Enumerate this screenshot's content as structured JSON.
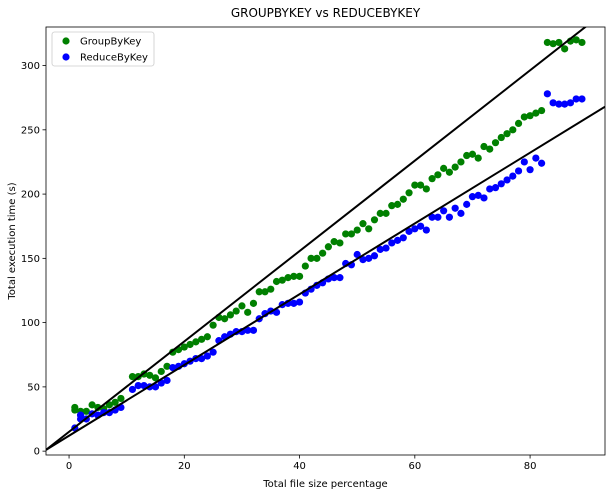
{
  "chart_data": {
    "type": "scatter",
    "title": "GROUPBYKEY vs REDUCEBYKEY",
    "xlabel": "Total file size percentage",
    "ylabel": "Total execution time (s)",
    "xlim": [
      -4,
      93
    ],
    "ylim": [
      -3,
      330
    ],
    "x_ticks": [
      0,
      20,
      40,
      60,
      80
    ],
    "y_ticks": [
      0,
      50,
      100,
      150,
      200,
      250,
      300
    ],
    "grid": false,
    "legend_position": "top-left",
    "series": [
      {
        "name": "GroupByKey",
        "color": "#008000",
        "points": [
          [
            1,
            34
          ],
          [
            1,
            32
          ],
          [
            2,
            31
          ],
          [
            2,
            28
          ],
          [
            3,
            31
          ],
          [
            4,
            36
          ],
          [
            5,
            34
          ],
          [
            6,
            33
          ],
          [
            7,
            36
          ],
          [
            8,
            38
          ],
          [
            9,
            41
          ],
          [
            11,
            58
          ],
          [
            12,
            58
          ],
          [
            13,
            60
          ],
          [
            14,
            59
          ],
          [
            15,
            57
          ],
          [
            16,
            62
          ],
          [
            17,
            66
          ],
          [
            18,
            77
          ],
          [
            19,
            79
          ],
          [
            20,
            81
          ],
          [
            21,
            83
          ],
          [
            22,
            85
          ],
          [
            23,
            87
          ],
          [
            24,
            89
          ],
          [
            25,
            98
          ],
          [
            26,
            104
          ],
          [
            27,
            103
          ],
          [
            28,
            106
          ],
          [
            29,
            109
          ],
          [
            30,
            113
          ],
          [
            31,
            108
          ],
          [
            32,
            115
          ],
          [
            33,
            124
          ],
          [
            34,
            124
          ],
          [
            35,
            126
          ],
          [
            36,
            132
          ],
          [
            37,
            133
          ],
          [
            38,
            135
          ],
          [
            39,
            136
          ],
          [
            40,
            136
          ],
          [
            41,
            144
          ],
          [
            42,
            150
          ],
          [
            43,
            150
          ],
          [
            44,
            154
          ],
          [
            45,
            159
          ],
          [
            46,
            163
          ],
          [
            47,
            162
          ],
          [
            48,
            169
          ],
          [
            49,
            169
          ],
          [
            50,
            172
          ],
          [
            51,
            177
          ],
          [
            52,
            173
          ],
          [
            53,
            180
          ],
          [
            54,
            185
          ],
          [
            55,
            185
          ],
          [
            56,
            191
          ],
          [
            57,
            192
          ],
          [
            58,
            196
          ],
          [
            59,
            201
          ],
          [
            60,
            207
          ],
          [
            61,
            207
          ],
          [
            62,
            204
          ],
          [
            63,
            212
          ],
          [
            64,
            215
          ],
          [
            65,
            220
          ],
          [
            66,
            217
          ],
          [
            67,
            221
          ],
          [
            68,
            225
          ],
          [
            69,
            230
          ],
          [
            70,
            231
          ],
          [
            71,
            228
          ],
          [
            72,
            237
          ],
          [
            73,
            235
          ],
          [
            74,
            240
          ],
          [
            75,
            244
          ],
          [
            76,
            247
          ],
          [
            77,
            250
          ],
          [
            78,
            255
          ],
          [
            79,
            260
          ],
          [
            80,
            261
          ],
          [
            81,
            263
          ],
          [
            82,
            265
          ],
          [
            83,
            318
          ],
          [
            84,
            317
          ],
          [
            85,
            318
          ],
          [
            86,
            313
          ],
          [
            87,
            319
          ],
          [
            88,
            320
          ],
          [
            89,
            318
          ]
        ]
      },
      {
        "name": "ReduceByKey",
        "color": "#0000ff",
        "points": [
          [
            1,
            18
          ],
          [
            2,
            28
          ],
          [
            2,
            25
          ],
          [
            3,
            25
          ],
          [
            4,
            29
          ],
          [
            5,
            28
          ],
          [
            6,
            30
          ],
          [
            7,
            30
          ],
          [
            8,
            32
          ],
          [
            9,
            34
          ],
          [
            11,
            48
          ],
          [
            12,
            51
          ],
          [
            13,
            51
          ],
          [
            14,
            50
          ],
          [
            15,
            50
          ],
          [
            16,
            53
          ],
          [
            17,
            55
          ],
          [
            18,
            65
          ],
          [
            19,
            66
          ],
          [
            20,
            68
          ],
          [
            21,
            70
          ],
          [
            22,
            72
          ],
          [
            23,
            72
          ],
          [
            24,
            74
          ],
          [
            25,
            77
          ],
          [
            26,
            86
          ],
          [
            27,
            89
          ],
          [
            28,
            91
          ],
          [
            29,
            93
          ],
          [
            30,
            93
          ],
          [
            31,
            94
          ],
          [
            32,
            94
          ],
          [
            33,
            103
          ],
          [
            34,
            107
          ],
          [
            35,
            109
          ],
          [
            36,
            108
          ],
          [
            37,
            114
          ],
          [
            38,
            115
          ],
          [
            39,
            115
          ],
          [
            40,
            116
          ],
          [
            41,
            123
          ],
          [
            42,
            126
          ],
          [
            43,
            129
          ],
          [
            44,
            131
          ],
          [
            45,
            134
          ],
          [
            46,
            135
          ],
          [
            47,
            135
          ],
          [
            48,
            146
          ],
          [
            49,
            145
          ],
          [
            50,
            153
          ],
          [
            51,
            149
          ],
          [
            52,
            150
          ],
          [
            53,
            152
          ],
          [
            54,
            157
          ],
          [
            55,
            158
          ],
          [
            56,
            162
          ],
          [
            57,
            164
          ],
          [
            58,
            166
          ],
          [
            59,
            171
          ],
          [
            60,
            173
          ],
          [
            61,
            175
          ],
          [
            62,
            172
          ],
          [
            63,
            182
          ],
          [
            64,
            182
          ],
          [
            65,
            187
          ],
          [
            66,
            182
          ],
          [
            67,
            189
          ],
          [
            68,
            185
          ],
          [
            69,
            192
          ],
          [
            70,
            198
          ],
          [
            71,
            199
          ],
          [
            72,
            197
          ],
          [
            73,
            204
          ],
          [
            74,
            205
          ],
          [
            75,
            208
          ],
          [
            76,
            211
          ],
          [
            77,
            214
          ],
          [
            78,
            218
          ],
          [
            79,
            225
          ],
          [
            80,
            219
          ],
          [
            81,
            228
          ],
          [
            82,
            224
          ],
          [
            83,
            278
          ],
          [
            84,
            271
          ],
          [
            85,
            270
          ],
          [
            86,
            270
          ],
          [
            87,
            271
          ],
          [
            88,
            274
          ],
          [
            89,
            274
          ]
        ]
      }
    ],
    "fit_lines": [
      {
        "color": "#000000",
        "x": [
          -4,
          93
        ],
        "y": [
          1,
          342
        ]
      },
      {
        "color": "#000000",
        "x": [
          -4,
          93
        ],
        "y": [
          1,
          268
        ]
      }
    ]
  }
}
